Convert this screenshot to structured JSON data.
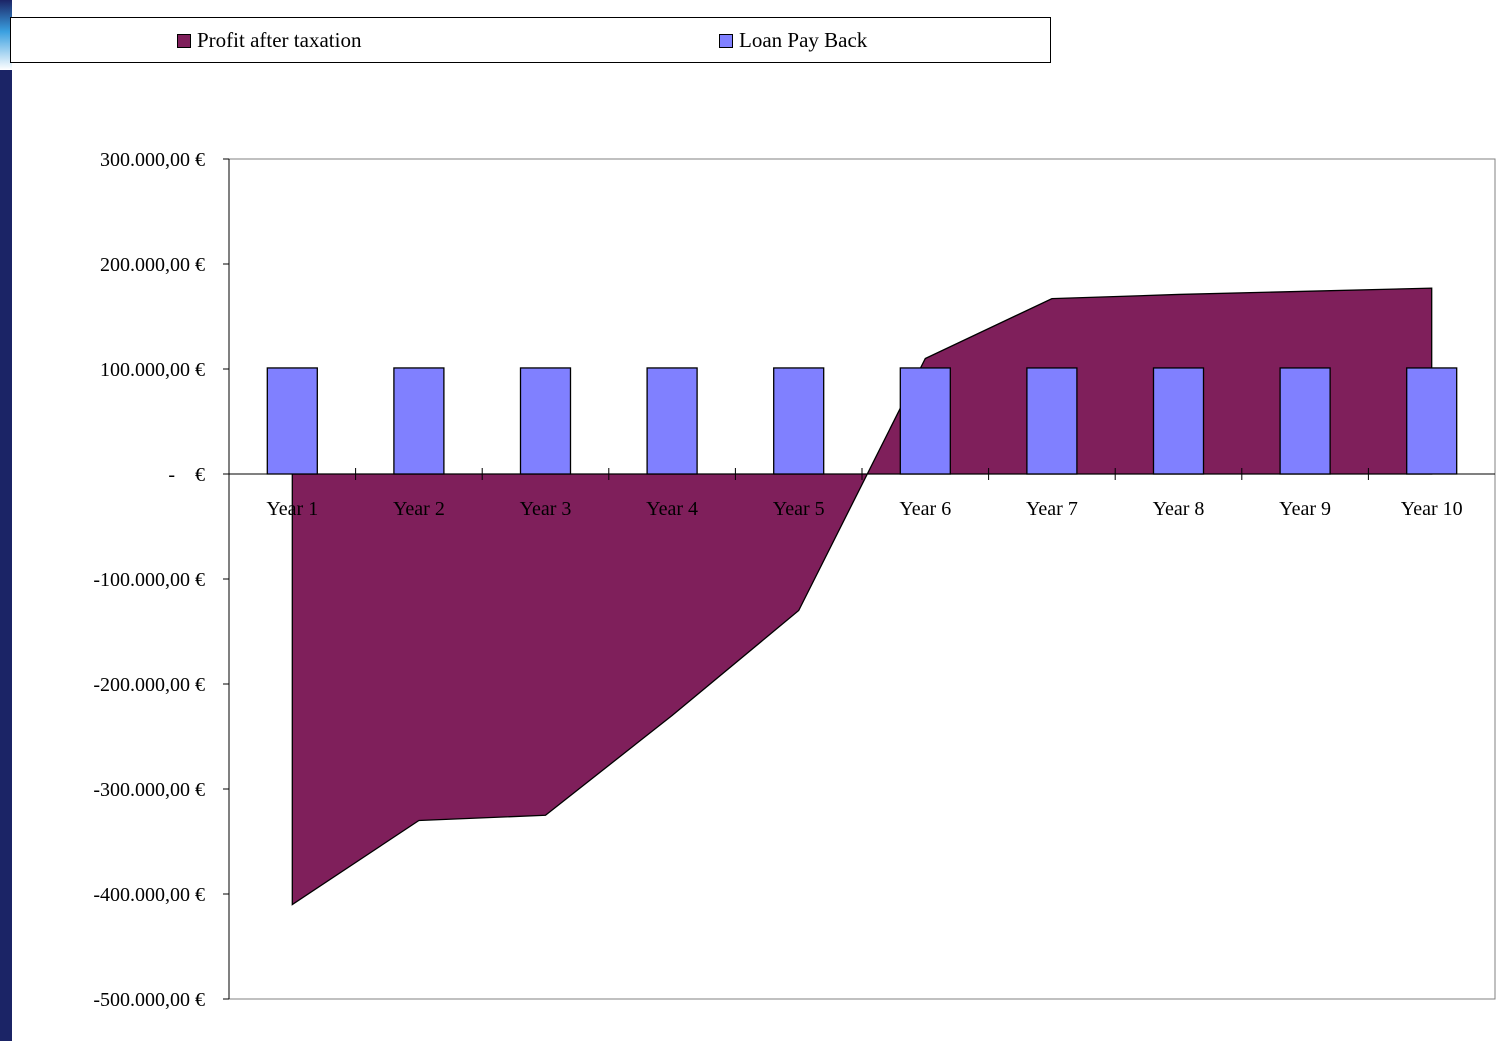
{
  "chart_data": {
    "type": "bar+area",
    "categories": [
      "Year 1",
      "Year 2",
      "Year 3",
      "Year 4",
      "Year 5",
      "Year 6",
      "Year 7",
      "Year 8",
      "Year 9",
      "Year 10"
    ],
    "series": [
      {
        "name": "Profit after taxation",
        "type": "area",
        "color": "#7f1f5b",
        "values": [
          -410000,
          -330000,
          -325000,
          -230000,
          -130000,
          110000,
          167000,
          171000,
          174000,
          177000
        ]
      },
      {
        "name": "Loan Pay Back",
        "type": "bar",
        "color": "#8080ff",
        "values": [
          101000,
          101000,
          101000,
          101000,
          101000,
          101000,
          101000,
          101000,
          101000,
          101000
        ]
      }
    ],
    "ylim": [
      -500000,
      300000
    ],
    "yticks": [
      300000,
      200000,
      100000,
      0,
      -100000,
      -200000,
      -300000,
      -400000,
      -500000
    ],
    "ytick_labels": [
      "300.000,00 €",
      "200.000,00 €",
      "100.000,00 €",
      "-    €",
      "-100.000,00 €",
      "-200.000,00 €",
      "-300.000,00 €",
      "-400.000,00 €",
      "-500.000,00 €"
    ],
    "grid": false,
    "legend_position": "top"
  }
}
